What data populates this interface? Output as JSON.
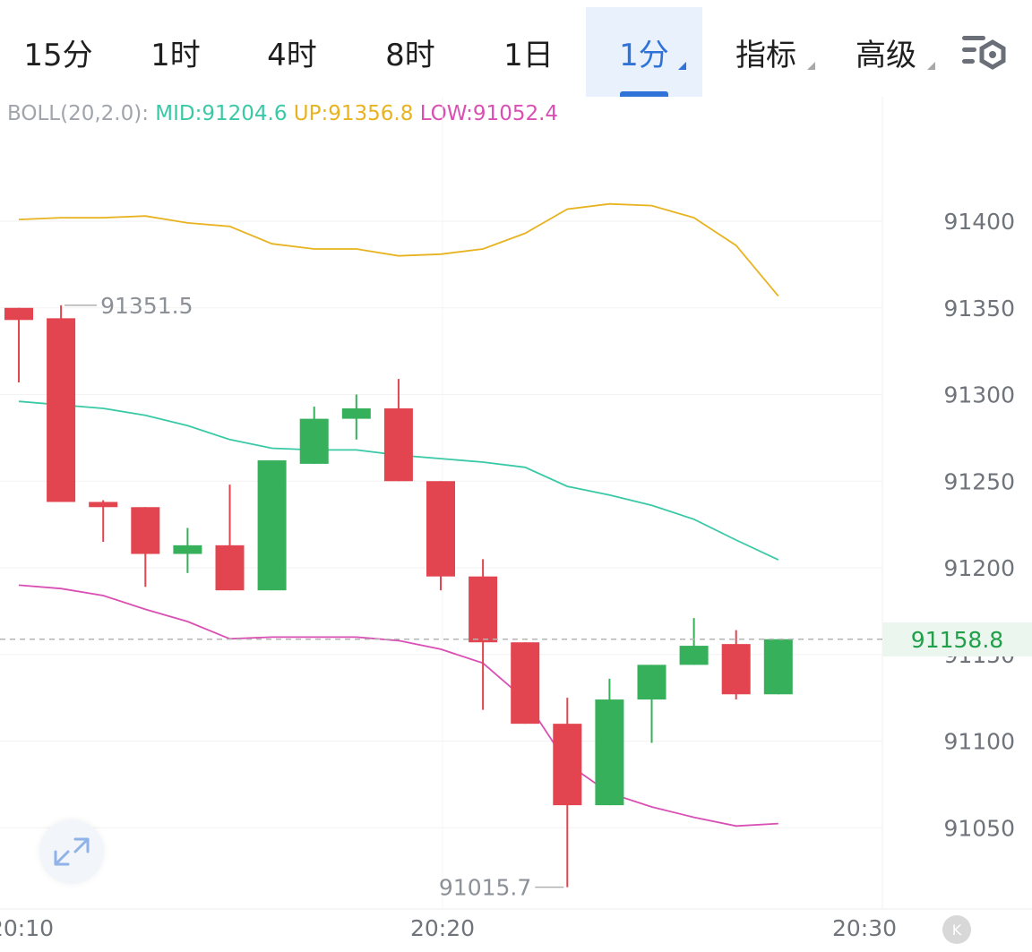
{
  "tabs": [
    {
      "label": "15分",
      "active": false,
      "dropdown": false
    },
    {
      "label": "1时",
      "active": false,
      "dropdown": false
    },
    {
      "label": "4时",
      "active": false,
      "dropdown": false
    },
    {
      "label": "8时",
      "active": false,
      "dropdown": false
    },
    {
      "label": "1日",
      "active": false,
      "dropdown": false
    },
    {
      "label": "1分",
      "active": true,
      "dropdown": true
    },
    {
      "label": "指标",
      "active": false,
      "dropdown": true
    },
    {
      "label": "高级",
      "active": false,
      "dropdown": true
    }
  ],
  "settings_icon": "chart-settings-icon",
  "boll": {
    "label": "BOLL(20,2.0):",
    "mid": "MID:91204.6",
    "up": "UP:91356.8",
    "low": "LOW:91052.4"
  },
  "colors": {
    "up_candle": "#36b05a",
    "down_candle": "#e2454f",
    "mid_line": "#3ac9a6",
    "up_line": "#e8b320",
    "low_line": "#d94fb3",
    "active_tab": "#2f73d8",
    "last_price": "#22a049"
  },
  "last_price": "91158.8",
  "expand_icon": "expand-arrows-icon",
  "scroll_button": "K",
  "chart_data": {
    "type": "candlestick",
    "y_ticks": [
      "91400",
      "91350",
      "91300",
      "91250",
      "91200",
      "91150",
      "91100",
      "91050"
    ],
    "x_ticks": [
      "20:10",
      "20:20",
      "20:30"
    ],
    "grid": true,
    "candles": [
      {
        "open": 91350,
        "high": 91350,
        "low": 91307,
        "close": 91343
      },
      {
        "open": 91344,
        "high": 91351.5,
        "low": 91238,
        "close": 91238
      },
      {
        "open": 91238,
        "high": 91239,
        "low": 91215,
        "close": 91235
      },
      {
        "open": 91235,
        "high": 91235,
        "low": 91189,
        "close": 91208
      },
      {
        "open": 91208,
        "high": 91223,
        "low": 91197,
        "close": 91213
      },
      {
        "open": 91213,
        "high": 91248,
        "low": 91187,
        "close": 91187
      },
      {
        "open": 91187,
        "high": 91262,
        "low": 91187,
        "close": 91262
      },
      {
        "open": 91260,
        "high": 91293,
        "low": 91260,
        "close": 91286
      },
      {
        "open": 91286,
        "high": 91300,
        "low": 91274,
        "close": 91292
      },
      {
        "open": 91292,
        "high": 91309,
        "low": 91250,
        "close": 91250
      },
      {
        "open": 91250,
        "high": 91250,
        "low": 91187,
        "close": 91195
      },
      {
        "open": 91195,
        "high": 91205,
        "low": 91118,
        "close": 91157
      },
      {
        "open": 91157,
        "high": 91157,
        "low": 91110,
        "close": 91110
      },
      {
        "open": 91110,
        "high": 91125,
        "low": 91015.7,
        "close": 91063
      },
      {
        "open": 91063,
        "high": 91136,
        "low": 91063,
        "close": 91124
      },
      {
        "open": 91124,
        "high": 91144,
        "low": 91099,
        "close": 91144
      },
      {
        "open": 91144,
        "high": 91171,
        "low": 91144,
        "close": 91155
      },
      {
        "open": 91156,
        "high": 91164,
        "low": 91124,
        "close": 91127
      },
      {
        "open": 91127,
        "high": 91158.8,
        "low": 91127,
        "close": 91158.8
      }
    ],
    "boll_up": [
      91401,
      91402,
      91402,
      91403,
      91399,
      91397,
      91387,
      91384,
      91384,
      91380,
      91381,
      91384,
      91393,
      91407,
      91410,
      91409,
      91402,
      91386,
      91356.8
    ],
    "boll_mid": [
      91296,
      91294,
      91292,
      91288,
      91282,
      91274,
      91269,
      91268,
      91268,
      91265,
      91263,
      91261,
      91258,
      91247,
      91242,
      91236,
      91228,
      91216,
      91204.6
    ],
    "boll_low": [
      91190,
      91188,
      91184,
      91176,
      91169,
      91159,
      91160,
      91160,
      91160,
      91158,
      91153,
      91145,
      91124,
      91087,
      91070,
      91062,
      91056,
      91051,
      91052.4
    ],
    "max_label": "91351.5",
    "min_label": "91015.7"
  }
}
